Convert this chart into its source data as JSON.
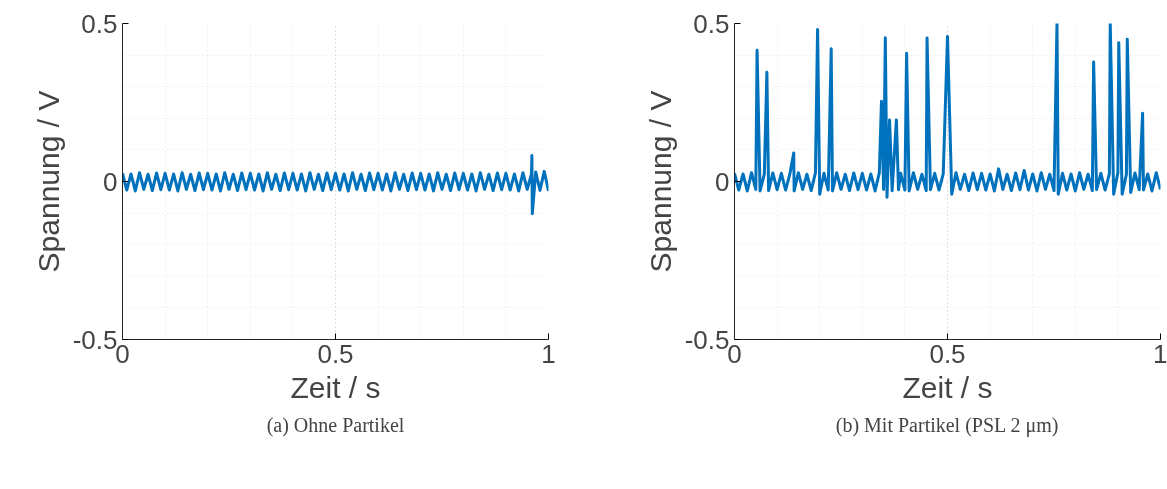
{
  "chart_data": [
    {
      "type": "line",
      "title": "(a) Ohne Partikel",
      "xlabel": "Zeit / s",
      "ylabel": "Spannung / V",
      "xlim": [
        0,
        1
      ],
      "ylim": [
        -0.5,
        0.5
      ],
      "xticks": [
        0,
        0.5,
        1
      ],
      "yticks": [
        -0.5,
        0,
        0.5
      ],
      "grid": true,
      "x": [
        0.0,
        0.01,
        0.02,
        0.03,
        0.04,
        0.05,
        0.06,
        0.07,
        0.08,
        0.09,
        0.1,
        0.11,
        0.12,
        0.13,
        0.14,
        0.15,
        0.16,
        0.17,
        0.18,
        0.19,
        0.2,
        0.21,
        0.22,
        0.23,
        0.24,
        0.25,
        0.26,
        0.27,
        0.28,
        0.29,
        0.3,
        0.31,
        0.32,
        0.33,
        0.34,
        0.35,
        0.36,
        0.37,
        0.38,
        0.39,
        0.4,
        0.41,
        0.42,
        0.43,
        0.44,
        0.45,
        0.46,
        0.47,
        0.48,
        0.49,
        0.5,
        0.51,
        0.52,
        0.53,
        0.54,
        0.55,
        0.56,
        0.57,
        0.58,
        0.59,
        0.6,
        0.61,
        0.62,
        0.63,
        0.64,
        0.65,
        0.66,
        0.67,
        0.68,
        0.69,
        0.7,
        0.71,
        0.72,
        0.73,
        0.74,
        0.75,
        0.76,
        0.77,
        0.78,
        0.79,
        0.8,
        0.81,
        0.82,
        0.83,
        0.84,
        0.85,
        0.86,
        0.87,
        0.88,
        0.89,
        0.9,
        0.91,
        0.92,
        0.93,
        0.94,
        0.95,
        0.96,
        0.961,
        0.962,
        0.97,
        0.98,
        0.99,
        1.0
      ],
      "series": [
        {
          "color": "#0072bd",
          "values": [
            0.026,
            -0.027,
            0.024,
            -0.03,
            0.028,
            -0.025,
            0.023,
            -0.029,
            0.027,
            -0.026,
            0.026,
            -0.027,
            0.024,
            -0.03,
            0.028,
            -0.025,
            0.023,
            -0.029,
            0.027,
            -0.026,
            0.026,
            -0.027,
            0.024,
            -0.03,
            0.028,
            -0.025,
            0.023,
            -0.029,
            0.027,
            -0.026,
            0.026,
            -0.027,
            0.024,
            -0.03,
            0.028,
            -0.025,
            0.023,
            -0.029,
            0.027,
            -0.026,
            0.026,
            -0.027,
            0.024,
            -0.03,
            0.028,
            -0.025,
            0.023,
            -0.029,
            0.027,
            -0.026,
            0.026,
            -0.027,
            0.024,
            -0.03,
            0.028,
            -0.025,
            0.023,
            -0.029,
            0.027,
            -0.026,
            0.026,
            -0.027,
            0.024,
            -0.03,
            0.028,
            -0.025,
            0.023,
            -0.029,
            0.027,
            -0.026,
            0.026,
            -0.027,
            0.024,
            -0.03,
            0.028,
            -0.025,
            0.023,
            -0.029,
            0.027,
            -0.026,
            0.026,
            -0.027,
            0.024,
            -0.03,
            0.028,
            -0.025,
            0.023,
            -0.029,
            0.027,
            -0.026,
            0.026,
            -0.027,
            0.024,
            -0.03,
            0.028,
            -0.025,
            0.023,
            0.082,
            -0.102,
            0.03,
            -0.028,
            0.032,
            -0.03
          ]
        }
      ]
    },
    {
      "type": "line",
      "title": "(b) Mit Partikel (PSL 2 μm)",
      "xlabel": "Zeit / s",
      "ylabel": "Spannung / V",
      "xlim": [
        0,
        1
      ],
      "ylim": [
        -0.5,
        0.5
      ],
      "xticks": [
        0,
        0.5,
        1
      ],
      "yticks": [
        -0.5,
        0,
        0.5
      ],
      "grid": true,
      "x": [
        0.0,
        0.01,
        0.02,
        0.03,
        0.04,
        0.05,
        0.053,
        0.06,
        0.07,
        0.076,
        0.08,
        0.09,
        0.1,
        0.11,
        0.12,
        0.13,
        0.139,
        0.14,
        0.15,
        0.16,
        0.17,
        0.18,
        0.19,
        0.195,
        0.2,
        0.21,
        0.22,
        0.227,
        0.23,
        0.24,
        0.25,
        0.26,
        0.27,
        0.28,
        0.29,
        0.3,
        0.31,
        0.32,
        0.33,
        0.34,
        0.345,
        0.35,
        0.354,
        0.358,
        0.364,
        0.37,
        0.38,
        0.385,
        0.39,
        0.4,
        0.404,
        0.41,
        0.42,
        0.43,
        0.44,
        0.45,
        0.452,
        0.46,
        0.47,
        0.48,
        0.49,
        0.5,
        0.51,
        0.52,
        0.53,
        0.54,
        0.55,
        0.56,
        0.57,
        0.58,
        0.59,
        0.6,
        0.61,
        0.62,
        0.63,
        0.64,
        0.65,
        0.66,
        0.67,
        0.68,
        0.69,
        0.7,
        0.71,
        0.72,
        0.73,
        0.74,
        0.75,
        0.757,
        0.76,
        0.77,
        0.78,
        0.79,
        0.8,
        0.81,
        0.82,
        0.83,
        0.84,
        0.843,
        0.85,
        0.86,
        0.87,
        0.88,
        0.882,
        0.89,
        0.9,
        0.902,
        0.91,
        0.92,
        0.922,
        0.93,
        0.94,
        0.95,
        0.958,
        0.96,
        0.97,
        0.98,
        0.99,
        1.0
      ],
      "series": [
        {
          "color": "#0072bd",
          "values": [
            0.026,
            -0.027,
            0.024,
            -0.03,
            0.028,
            -0.025,
            0.415,
            -0.03,
            0.023,
            0.346,
            -0.029,
            0.027,
            -0.026,
            0.026,
            -0.027,
            0.024,
            0.09,
            -0.03,
            0.028,
            -0.025,
            0.023,
            -0.029,
            0.027,
            0.481,
            -0.04,
            0.026,
            -0.027,
            0.42,
            -0.03,
            0.028,
            -0.025,
            0.023,
            -0.029,
            0.027,
            -0.026,
            0.026,
            -0.027,
            0.024,
            -0.03,
            0.028,
            0.254,
            -0.025,
            0.455,
            -0.05,
            0.195,
            -0.029,
            0.195,
            -0.026,
            0.026,
            -0.027,
            0.406,
            -0.03,
            0.028,
            -0.025,
            0.023,
            -0.029,
            0.454,
            -0.026,
            0.026,
            -0.027,
            0.024,
            0.459,
            -0.04,
            0.028,
            -0.025,
            0.023,
            -0.029,
            0.027,
            -0.026,
            0.026,
            -0.027,
            0.024,
            -0.03,
            0.04,
            -0.025,
            0.023,
            -0.029,
            0.027,
            -0.026,
            0.035,
            -0.027,
            0.024,
            -0.03,
            0.028,
            -0.025,
            0.023,
            -0.029,
            0.499,
            -0.04,
            0.026,
            -0.027,
            0.024,
            -0.03,
            0.028,
            -0.025,
            0.023,
            -0.029,
            0.378,
            -0.026,
            0.026,
            -0.027,
            0.024,
            0.5,
            -0.04,
            0.028,
            0.439,
            -0.04,
            0.023,
            0.45,
            -0.035,
            0.027,
            -0.026,
            0.216,
            -0.027,
            0.024,
            -0.03,
            0.028,
            -0.025
          ]
        }
      ]
    }
  ]
}
